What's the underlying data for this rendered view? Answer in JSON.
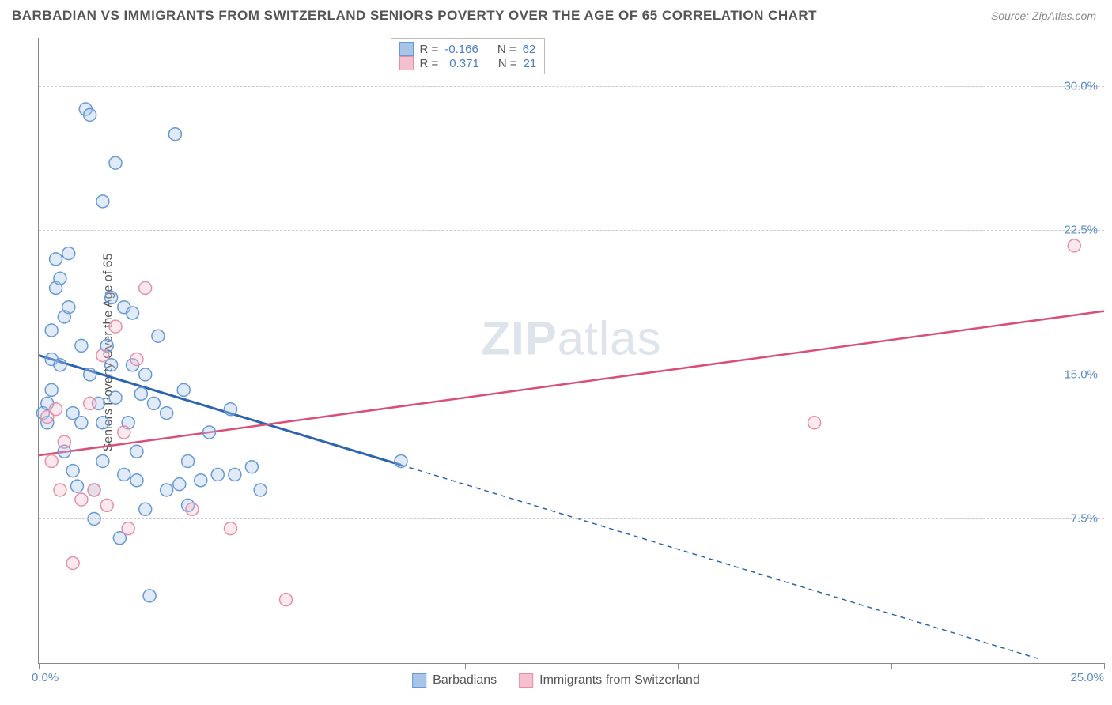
{
  "title": "BARBADIAN VS IMMIGRANTS FROM SWITZERLAND SENIORS POVERTY OVER THE AGE OF 65 CORRELATION CHART",
  "source": "Source: ZipAtlas.com",
  "y_axis_label": "Seniors Poverty Over the Age of 65",
  "watermark_a": "ZIP",
  "watermark_b": "atlas",
  "chart": {
    "type": "scatter",
    "xlim": [
      0,
      25
    ],
    "ylim": [
      0,
      32.5
    ],
    "x_ticks": [
      0,
      5,
      10,
      15,
      20,
      25
    ],
    "x_tick_labels": {
      "0": "0.0%",
      "25": "25.0%"
    },
    "y_ticks": [
      7.5,
      15.0,
      22.5,
      30.0
    ],
    "y_tick_labels": [
      "7.5%",
      "15.0%",
      "22.5%",
      "30.0%"
    ],
    "grid_color": "#cccccc",
    "axis_color": "#888888",
    "tick_label_color": "#5b8bc9",
    "background": "#ffffff",
    "marker_radius": 8,
    "marker_stroke_width": 1.5,
    "marker_fill_opacity": 0.35,
    "series": [
      {
        "name": "Barbadians",
        "color_stroke": "#6699d8",
        "color_fill": "#a8c5e8",
        "R": -0.166,
        "N": 62,
        "trend": {
          "x1": 0,
          "y1": 16.0,
          "x2_solid": 8.5,
          "y2_solid": 10.3,
          "x2": 23.5,
          "y2": 0.2,
          "color": "#2d64b0",
          "width": 3
        },
        "points": [
          [
            0.1,
            13.0
          ],
          [
            0.2,
            13.5
          ],
          [
            0.2,
            12.5
          ],
          [
            0.3,
            14.2
          ],
          [
            0.3,
            15.8
          ],
          [
            0.3,
            17.3
          ],
          [
            0.4,
            19.5
          ],
          [
            0.4,
            21.0
          ],
          [
            0.5,
            20.0
          ],
          [
            0.5,
            15.5
          ],
          [
            0.6,
            18.0
          ],
          [
            0.6,
            11.0
          ],
          [
            0.7,
            18.5
          ],
          [
            0.7,
            21.3
          ],
          [
            0.8,
            13.0
          ],
          [
            0.8,
            10.0
          ],
          [
            0.9,
            9.2
          ],
          [
            1.0,
            16.5
          ],
          [
            1.0,
            12.5
          ],
          [
            1.1,
            28.8
          ],
          [
            1.2,
            28.5
          ],
          [
            1.2,
            15.0
          ],
          [
            1.3,
            7.5
          ],
          [
            1.3,
            9.0
          ],
          [
            1.4,
            13.5
          ],
          [
            1.5,
            24.0
          ],
          [
            1.5,
            12.5
          ],
          [
            1.5,
            10.5
          ],
          [
            1.6,
            16.5
          ],
          [
            1.7,
            19.0
          ],
          [
            1.7,
            15.5
          ],
          [
            1.8,
            26.0
          ],
          [
            1.8,
            13.8
          ],
          [
            1.9,
            6.5
          ],
          [
            2.0,
            18.5
          ],
          [
            2.0,
            9.8
          ],
          [
            2.1,
            12.5
          ],
          [
            2.2,
            15.5
          ],
          [
            2.2,
            18.2
          ],
          [
            2.3,
            9.5
          ],
          [
            2.3,
            11.0
          ],
          [
            2.4,
            14.0
          ],
          [
            2.5,
            15.0
          ],
          [
            2.5,
            8.0
          ],
          [
            2.6,
            3.5
          ],
          [
            2.7,
            13.5
          ],
          [
            2.8,
            17.0
          ],
          [
            3.0,
            9.0
          ],
          [
            3.0,
            13.0
          ],
          [
            3.2,
            27.5
          ],
          [
            3.3,
            9.3
          ],
          [
            3.4,
            14.2
          ],
          [
            3.5,
            8.2
          ],
          [
            3.5,
            10.5
          ],
          [
            3.8,
            9.5
          ],
          [
            4.0,
            12.0
          ],
          [
            4.2,
            9.8
          ],
          [
            4.5,
            13.2
          ],
          [
            4.6,
            9.8
          ],
          [
            5.0,
            10.2
          ],
          [
            5.2,
            9.0
          ],
          [
            8.5,
            10.5
          ]
        ]
      },
      {
        "name": "Immigrants from Switzerland",
        "color_stroke": "#e68fa8",
        "color_fill": "#f5c0ce",
        "R": 0.371,
        "N": 21,
        "trend": {
          "x1": 0,
          "y1": 10.8,
          "x2": 25,
          "y2": 18.3,
          "color": "#d94f78",
          "width": 2.5
        },
        "points": [
          [
            0.2,
            12.8
          ],
          [
            0.3,
            10.5
          ],
          [
            0.4,
            13.2
          ],
          [
            0.5,
            9.0
          ],
          [
            0.6,
            11.5
          ],
          [
            0.8,
            5.2
          ],
          [
            1.0,
            8.5
          ],
          [
            1.2,
            13.5
          ],
          [
            1.3,
            9.0
          ],
          [
            1.5,
            16.0
          ],
          [
            1.6,
            8.2
          ],
          [
            1.8,
            17.5
          ],
          [
            2.0,
            12.0
          ],
          [
            2.1,
            7.0
          ],
          [
            2.3,
            15.8
          ],
          [
            2.5,
            19.5
          ],
          [
            3.6,
            8.0
          ],
          [
            4.5,
            7.0
          ],
          [
            5.8,
            3.3
          ],
          [
            18.2,
            12.5
          ],
          [
            24.3,
            21.7
          ]
        ]
      }
    ]
  },
  "legend": {
    "series1_label": "Barbadians",
    "series2_label": "Immigrants from Switzerland"
  },
  "stats": {
    "r_label": "R =",
    "n_label": "N =",
    "s1_r": "-0.166",
    "s1_n": "62",
    "s2_r": "0.371",
    "s2_n": "21"
  }
}
